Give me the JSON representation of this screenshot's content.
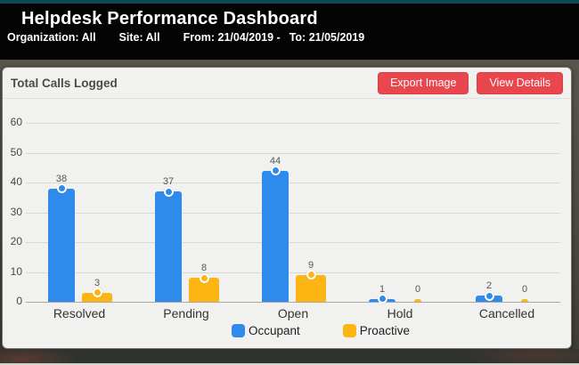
{
  "header": {
    "title": "Helpdesk Performance Dashboard",
    "filters": [
      "Organization: All",
      "Site: All",
      "From: 21/04/2019 -",
      "To: 21/05/2019"
    ]
  },
  "panel": {
    "title": "Total Calls Logged",
    "buttons": [
      {
        "label": "Export Image"
      },
      {
        "label": "View Details"
      }
    ]
  },
  "chart_data": {
    "type": "bar",
    "title": "Total Calls Logged",
    "categories": [
      "Resolved",
      "Pending",
      "Open",
      "Hold",
      "Cancelled"
    ],
    "series": [
      {
        "name": "Occupant",
        "color": "#2e8bec",
        "values": [
          38,
          37,
          44,
          1,
          2
        ]
      },
      {
        "name": "Proactive",
        "color": "#fcb513",
        "values": [
          3,
          8,
          9,
          0,
          0
        ]
      }
    ],
    "yticks": [
      0,
      10,
      20,
      30,
      40,
      50,
      60
    ],
    "ylim": [
      0,
      65
    ],
    "grid": true,
    "legend_position": "bottom",
    "value_labels": true,
    "marker": "circle"
  },
  "colors": {
    "top_strip": "#0d4a57",
    "header_bg": "#040404",
    "panel_bg": "#f1f1ef",
    "accent_button": "#e9464e",
    "bar_blue": "#2e8bec",
    "bar_yellow": "#fcb513"
  }
}
